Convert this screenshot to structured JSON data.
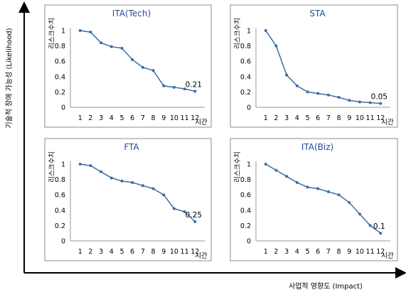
{
  "figure": {
    "outer_xlabel": "사업적 영향도 (Impact)",
    "outer_ylabel": "기술적 장애 가능성 (Likelihood)"
  },
  "chart_data": [
    {
      "type": "line",
      "title": "ITA(Tech)",
      "xlabel": "시간",
      "ylabel": "리스크수치",
      "x": [
        1,
        2,
        3,
        4,
        5,
        6,
        7,
        8,
        9,
        10,
        11,
        12
      ],
      "xticks": [
        "1",
        "2",
        "3",
        "4",
        "5",
        "6",
        "7",
        "8",
        "9",
        "10",
        "11",
        "12"
      ],
      "yticks": [
        "0",
        "0.2",
        "0.4",
        "0.6",
        "0.8",
        "1"
      ],
      "ylim": [
        0,
        1
      ],
      "grid": false,
      "series": [
        {
          "values": [
            1.0,
            0.98,
            0.84,
            0.79,
            0.77,
            0.62,
            0.52,
            0.48,
            0.28,
            0.26,
            0.24,
            0.21
          ]
        }
      ],
      "annotation": {
        "text": "0.21",
        "x": 12,
        "y": 0.21
      }
    },
    {
      "type": "line",
      "title": "STA",
      "xlabel": "시간",
      "ylabel": "리스크수치",
      "x": [
        1,
        2,
        3,
        4,
        5,
        6,
        7,
        8,
        9,
        10,
        11,
        12
      ],
      "xticks": [
        "1",
        "2",
        "3",
        "4",
        "5",
        "6",
        "7",
        "8",
        "9",
        "10",
        "11",
        "12"
      ],
      "yticks": [
        "0",
        "0.2",
        "0.4",
        "0.6",
        "0.8",
        "1"
      ],
      "ylim": [
        0,
        1
      ],
      "grid": false,
      "series": [
        {
          "values": [
            1.0,
            0.8,
            0.42,
            0.28,
            0.2,
            0.18,
            0.16,
            0.13,
            0.09,
            0.07,
            0.06,
            0.05
          ]
        }
      ],
      "annotation": {
        "text": "0.05",
        "x": 12,
        "y": 0.05
      }
    },
    {
      "type": "line",
      "title": "FTA",
      "xlabel": "시간",
      "ylabel": "리스크수치",
      "x": [
        1,
        2,
        3,
        4,
        5,
        6,
        7,
        8,
        9,
        10,
        11,
        12
      ],
      "xticks": [
        "1",
        "2",
        "3",
        "4",
        "5",
        "6",
        "7",
        "8",
        "9",
        "10",
        "11",
        "12"
      ],
      "yticks": [
        "0",
        "0.2",
        "0.4",
        "0.6",
        "0.8",
        "1"
      ],
      "ylim": [
        0,
        1
      ],
      "grid": false,
      "series": [
        {
          "values": [
            1.0,
            0.98,
            0.9,
            0.82,
            0.78,
            0.76,
            0.72,
            0.68,
            0.6,
            0.42,
            0.38,
            0.25
          ]
        }
      ],
      "annotation": {
        "text": "0.25",
        "x": 12,
        "y": 0.25
      }
    },
    {
      "type": "line",
      "title": "ITA(Biz)",
      "xlabel": "시간",
      "ylabel": "리스크수치",
      "x": [
        1,
        2,
        3,
        4,
        5,
        6,
        7,
        8,
        9,
        10,
        11,
        12
      ],
      "xticks": [
        "1",
        "2",
        "3",
        "4",
        "5",
        "6",
        "7",
        "8",
        "9",
        "10",
        "11",
        "12"
      ],
      "yticks": [
        "0",
        "0.2",
        "0.4",
        "0.6",
        "0.8",
        "1"
      ],
      "ylim": [
        0,
        1
      ],
      "grid": false,
      "series": [
        {
          "values": [
            1.0,
            0.92,
            0.84,
            0.76,
            0.7,
            0.68,
            0.64,
            0.6,
            0.5,
            0.35,
            0.2,
            0.1
          ]
        }
      ],
      "annotation": {
        "text": "0.1",
        "x": 12,
        "y": 0.1
      }
    }
  ]
}
